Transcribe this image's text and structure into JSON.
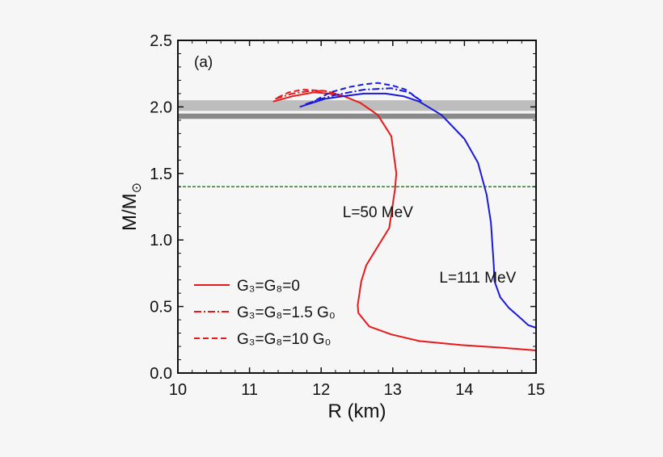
{
  "chart_data": {
    "type": "line",
    "panel_label": "(a)",
    "xlabel": "R (km)",
    "ylabel_main": "M/M",
    "ylabel_sub": "⊙",
    "xlim": [
      10,
      15
    ],
    "ylim": [
      0.0,
      2.5
    ],
    "xticks": [
      "10",
      "11",
      "12",
      "13",
      "14",
      "15"
    ],
    "yticks": [
      "0.0",
      "0.5",
      "1.0",
      "1.5",
      "2.0",
      "2.5"
    ],
    "grid": false,
    "legend_position": "bottom-left",
    "legend": [
      {
        "label": "G₃=G₈=0",
        "style": "solid",
        "color": "#e8191b"
      },
      {
        "label": "G₃=G₈=1.5 G₀",
        "style": "dashdot",
        "color": "#e8191b"
      },
      {
        "label": "G₃=G₈=10 G₀",
        "style": "dashed",
        "color": "#e8191b"
      }
    ],
    "annotations": [
      {
        "text": "L=50 MeV",
        "x": 12.3,
        "y": 1.17
      },
      {
        "text": "L=111 MeV",
        "x": 13.65,
        "y": 0.68
      }
    ],
    "bands": [
      {
        "ymin": 1.97,
        "ymax": 2.05,
        "color": "#bdbdbd"
      },
      {
        "ymin": 1.91,
        "ymax": 1.95,
        "color": "#8a8a8a"
      }
    ],
    "reference_line": {
      "y": 1.4,
      "color": "#1a8a1a",
      "style": "dotted"
    },
    "series": [
      {
        "group": "L=50 MeV",
        "style": "solid",
        "color": "#e8191b",
        "x": [
          11.33,
          11.6,
          11.9,
          12.1,
          12.32,
          12.55,
          12.79,
          12.98,
          13.05,
          13.03,
          12.95,
          12.79,
          12.63,
          12.56,
          12.51,
          12.52,
          12.67,
          12.98,
          13.37,
          13.96,
          14.54,
          15.0
        ],
        "y": [
          2.04,
          2.08,
          2.11,
          2.1,
          2.08,
          2.03,
          1.94,
          1.78,
          1.5,
          1.38,
          1.09,
          0.95,
          0.81,
          0.69,
          0.51,
          0.45,
          0.35,
          0.29,
          0.24,
          0.21,
          0.19,
          0.17
        ]
      },
      {
        "group": "L=50 MeV",
        "style": "dashdot",
        "color": "#e8191b",
        "x": [
          11.36,
          11.6,
          11.85,
          12.05,
          12.2,
          12.32
        ],
        "y": [
          2.06,
          2.1,
          2.12,
          2.12,
          2.1,
          2.08
        ]
      },
      {
        "group": "L=50 MeV",
        "style": "dashed",
        "color": "#e8191b",
        "x": [
          11.39,
          11.55,
          11.74,
          12.05,
          12.2,
          12.32
        ],
        "y": [
          2.07,
          2.11,
          2.13,
          2.12,
          2.1,
          2.08
        ]
      },
      {
        "group": "L=111 MeV",
        "style": "solid",
        "color": "#1a1adb",
        "x": [
          11.7,
          12.05,
          12.3,
          12.6,
          12.9,
          13.15,
          13.37,
          13.68,
          14.0,
          14.19,
          14.31,
          14.37,
          14.41,
          14.42,
          14.5,
          14.62,
          14.81,
          14.89,
          15.0
        ],
        "y": [
          2.0,
          2.06,
          2.08,
          2.1,
          2.1,
          2.08,
          2.04,
          1.94,
          1.76,
          1.58,
          1.34,
          1.13,
          0.81,
          0.69,
          0.57,
          0.49,
          0.4,
          0.36,
          0.34
        ]
      },
      {
        "group": "L=111 MeV",
        "style": "dashdot",
        "color": "#1a1adb",
        "x": [
          11.78,
          12.0,
          12.2,
          12.6,
          12.98,
          13.22,
          13.41
        ],
        "y": [
          2.02,
          2.06,
          2.09,
          2.13,
          2.14,
          2.11,
          2.04
        ]
      },
      {
        "group": "L=111 MeV",
        "style": "dashed",
        "color": "#1a1adb",
        "x": [
          11.82,
          12.13,
          12.4,
          12.6,
          12.79,
          13.0,
          13.18,
          13.41
        ],
        "y": [
          2.02,
          2.11,
          2.15,
          2.17,
          2.18,
          2.16,
          2.13,
          2.04
        ]
      }
    ]
  }
}
